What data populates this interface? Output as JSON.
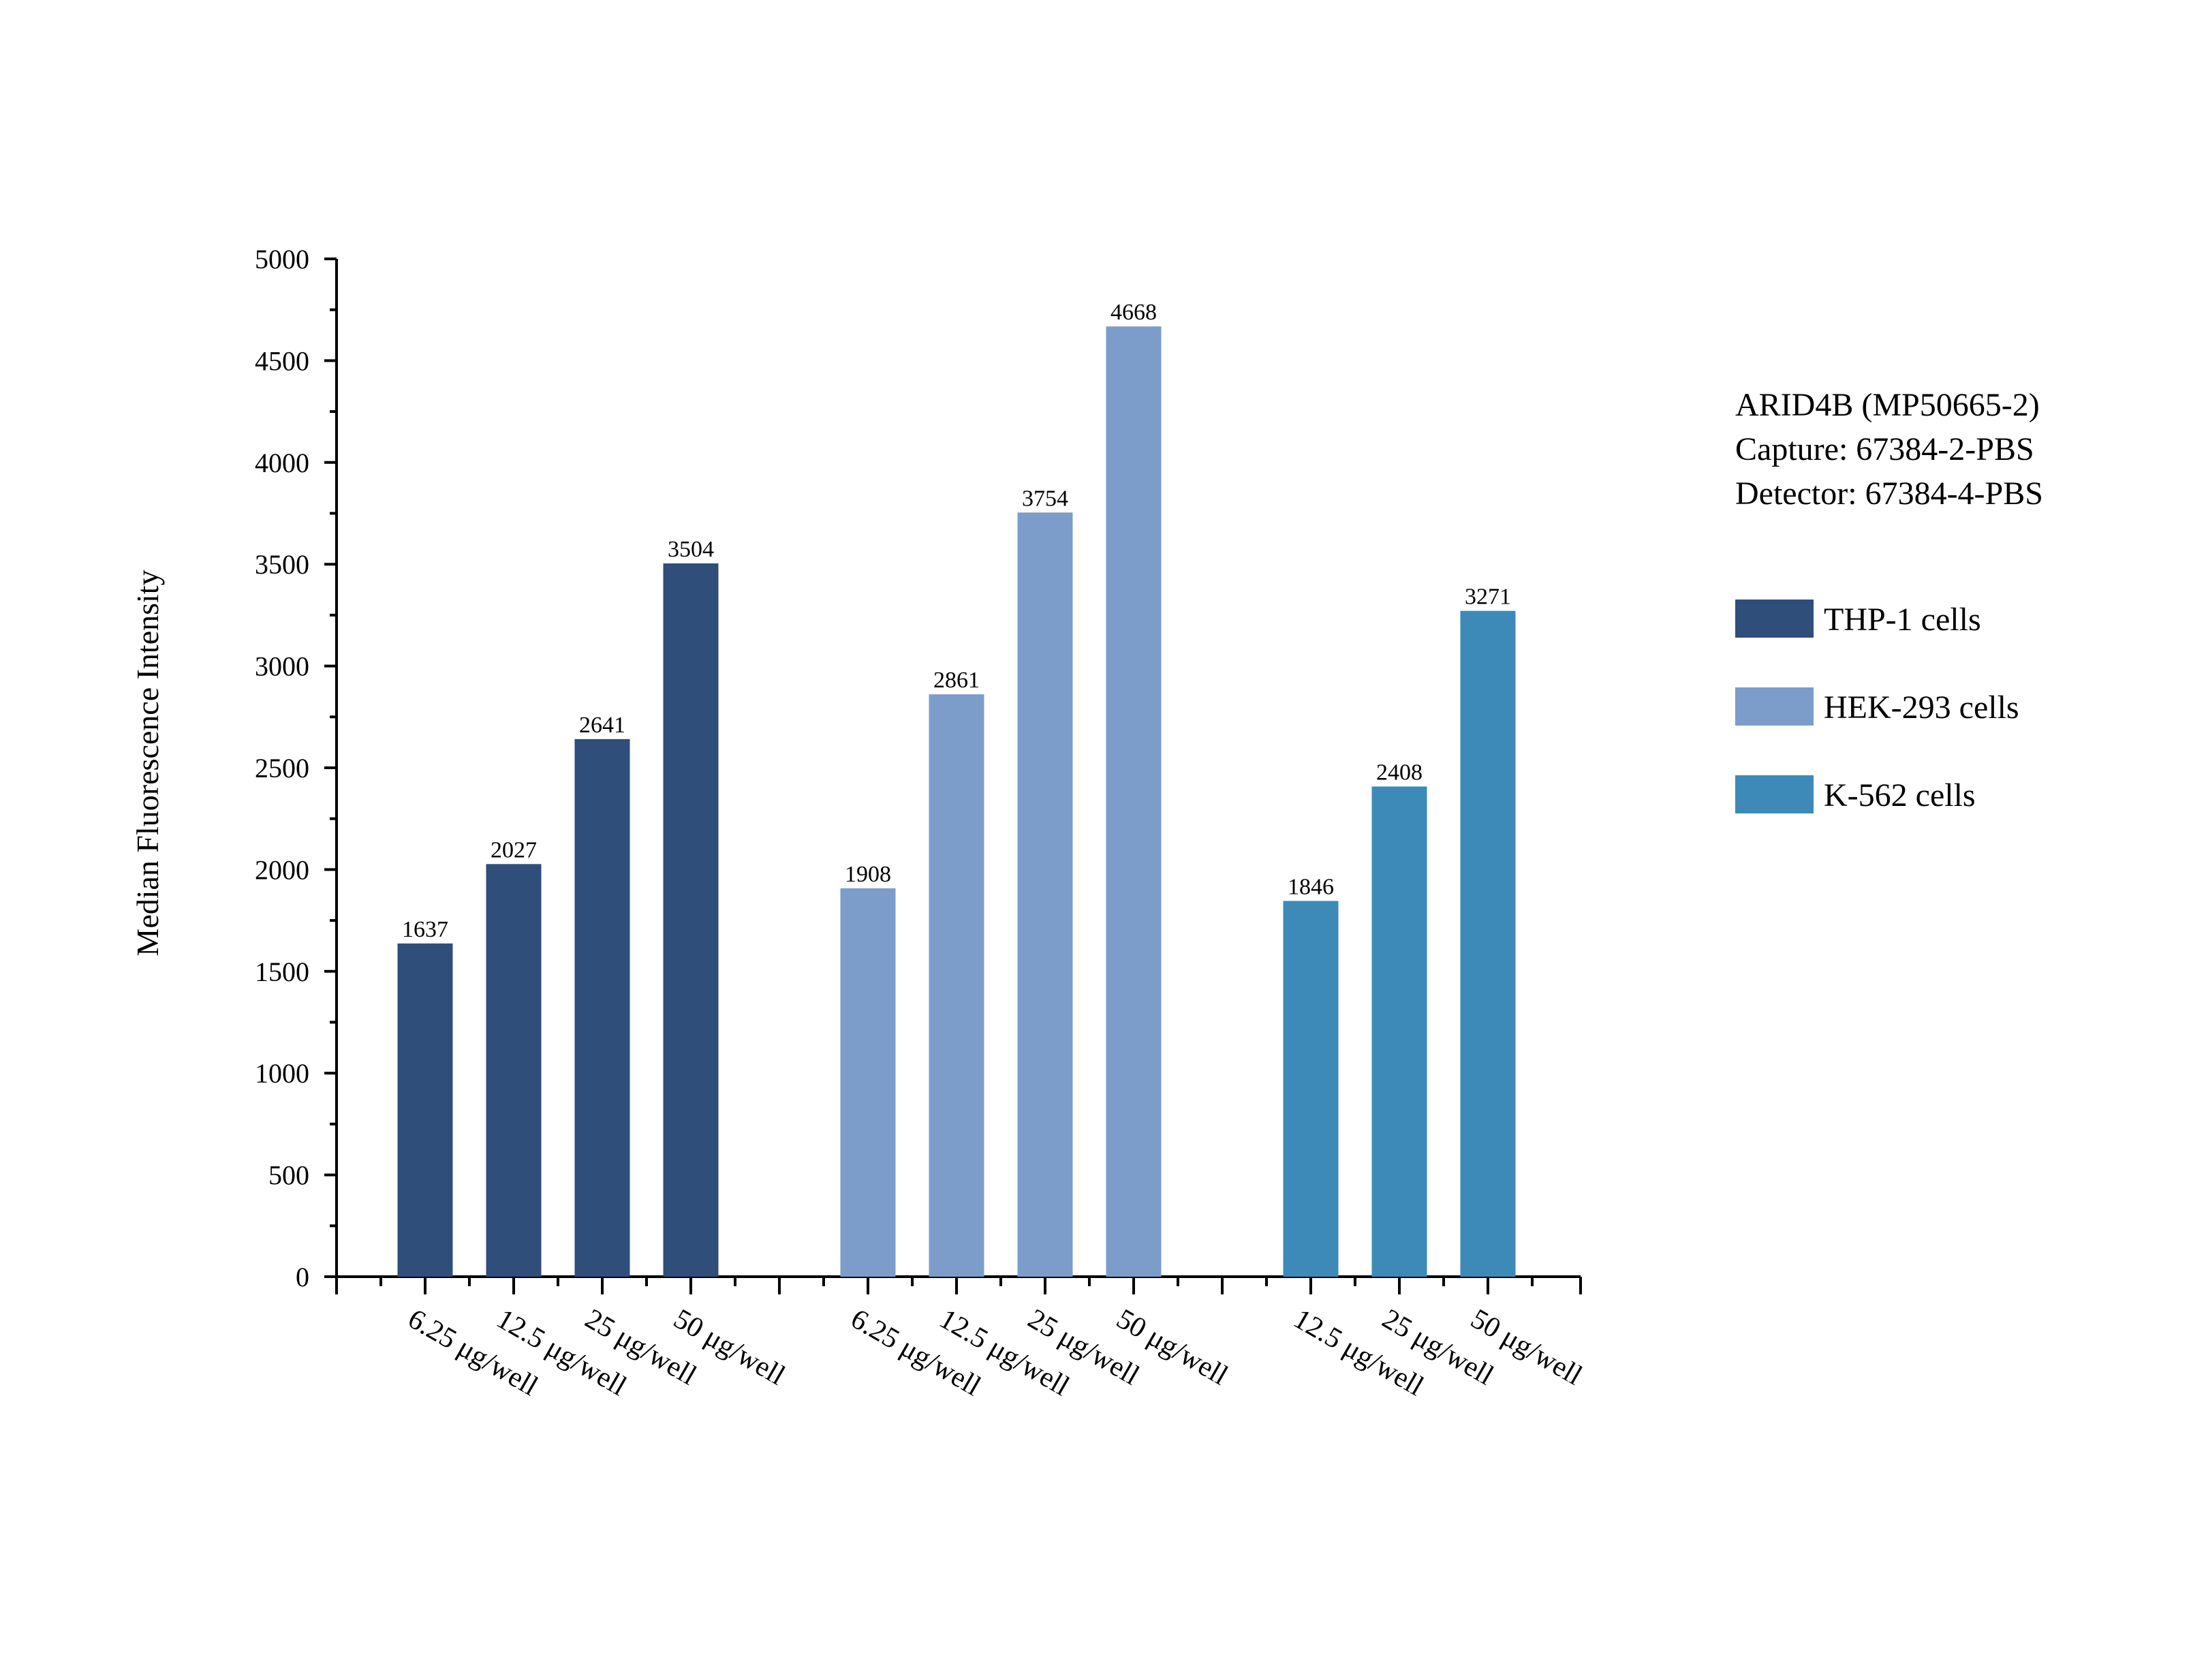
{
  "chart_data": {
    "type": "bar",
    "title": "",
    "ylabel": "Median Fluorescence Intensity",
    "xlabel": "",
    "ylim": [
      0,
      5000
    ],
    "yticks": [
      0,
      500,
      1000,
      1500,
      2000,
      2500,
      3000,
      3500,
      4000,
      4500,
      5000
    ],
    "grid": false,
    "legend_position": "right",
    "annotation_lines": [
      "ARID4B (MP50665-2)",
      "Capture: 67384-2-PBS",
      "Detector: 67384-4-PBS"
    ],
    "series": [
      {
        "name": "THP-1 cells",
        "color": "#2f4e79",
        "categories": [
          "6.25 μg/well",
          "12.5 μg/well",
          "25 μg/well",
          "50 μg/well"
        ],
        "values": [
          1637,
          2027,
          2641,
          3504
        ]
      },
      {
        "name": "HEK-293 cells",
        "color": "#7c9dca",
        "categories": [
          "6.25 μg/well",
          "12.5 μg/well",
          "25 μg/well",
          "50 μg/well"
        ],
        "values": [
          1908,
          2861,
          3754,
          4668
        ]
      },
      {
        "name": "K-562 cells",
        "color": "#3d8ab8",
        "categories": [
          "12.5 μg/well",
          "25 μg/well",
          "50 μg/well"
        ],
        "values": [
          1846,
          2408,
          3271
        ]
      }
    ]
  }
}
